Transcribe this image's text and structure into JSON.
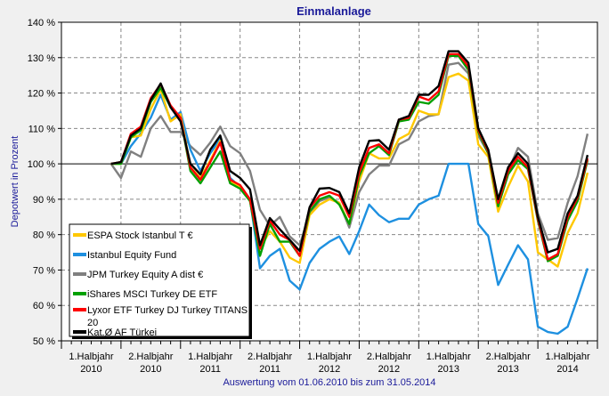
{
  "chart_data": {
    "type": "line",
    "title": "Einmalanlage",
    "ylabel": "Depotwert in Prozent",
    "xlabel": "Auswertung vom 01.06.2010 bis zum 31.05.2014",
    "ylim": [
      50,
      140
    ],
    "yticks": [
      50,
      60,
      70,
      80,
      90,
      100,
      110,
      120,
      130,
      140
    ],
    "ytick_suffix": " %",
    "reference_line": 100,
    "grid": true,
    "legend_position": "bottom-left",
    "x_start_month": "2010-06",
    "x_end_month": "2014-06",
    "xtick_labels": [
      [
        "1.Halbjahr",
        "2010"
      ],
      [
        "2.Halbjahr",
        "2010"
      ],
      [
        "1.Halbjahr",
        "2011"
      ],
      [
        "2.Halbjahr",
        "2011"
      ],
      [
        "1.Halbjahr",
        "2012"
      ],
      [
        "2.Halbjahr",
        "2012"
      ],
      [
        "1.Halbjahr",
        "2013"
      ],
      [
        "2.Halbjahr",
        "2013"
      ],
      [
        "1.Halbjahr",
        "2014"
      ]
    ],
    "series": [
      {
        "name": "JPM Turkey Equity A dist €",
        "color": "#808080",
        "values": [
          100,
          96,
          103.5,
          102,
          110,
          113.5,
          109,
          109,
          105,
          102.5,
          106,
          110.5,
          105,
          103,
          98,
          87,
          82.5,
          85,
          79.5,
          77,
          86,
          89.5,
          90.5,
          89,
          82,
          92,
          97,
          99.5,
          99.5,
          105.5,
          107,
          112,
          113.5,
          114,
          128,
          128.5,
          125.5,
          108,
          103,
          88,
          98,
          104.5,
          102,
          86,
          78.5,
          79,
          89,
          96.5,
          108.5
        ]
      },
      {
        "name": "Istanbul Equity Fund",
        "color": "#1e90e0",
        "values": [
          100,
          100,
          105,
          108.6,
          113,
          119.5,
          112.5,
          114.6,
          104,
          98,
          103,
          107,
          96,
          93.5,
          90,
          70.5,
          74,
          76,
          67,
          64.5,
          72,
          76,
          78,
          79.5,
          74.5,
          81,
          88.5,
          85.5,
          83.5,
          84.5,
          84.5,
          88.5,
          90,
          91,
          100,
          100,
          100,
          83,
          79.6,
          65.8,
          71.5,
          77,
          73,
          54,
          52.5,
          52,
          54,
          62,
          70.5
        ]
      },
      {
        "name": "ESPA Stock Istanbul T €",
        "color": "#ffc800",
        "values": [
          100,
          100,
          107.5,
          108,
          115.5,
          121,
          112,
          114,
          99,
          96,
          101,
          106.5,
          95,
          93.5,
          89.5,
          76,
          81,
          78,
          73.5,
          72,
          85.5,
          88.5,
          90,
          89,
          83,
          95,
          103,
          101.5,
          101.5,
          107,
          108.5,
          115,
          114,
          114,
          124.5,
          125.5,
          123.5,
          105.5,
          102,
          86.5,
          93.5,
          99.5,
          95,
          75,
          73,
          71,
          80.5,
          86,
          97.5
        ]
      },
      {
        "name": "iShares MSCI Turkey DE ETF",
        "color": "#00a000",
        "values": [
          100,
          100,
          107.5,
          109.5,
          117.5,
          121.5,
          116,
          113,
          98,
          94.5,
          99,
          103.5,
          94.5,
          93,
          89.5,
          74,
          83,
          78,
          78,
          74,
          86.5,
          90,
          91,
          88.5,
          83,
          96.5,
          103,
          105,
          102.5,
          112,
          112.5,
          117.5,
          117,
          119.5,
          130.5,
          130.5,
          126.5,
          109,
          103,
          88,
          97,
          101,
          98.5,
          84,
          72.5,
          74,
          84,
          89.5,
          101
        ]
      },
      {
        "name": "Lyxor ETF Turkey DJ Turkey TITANS 20",
        "color": "#ff0000",
        "values": [
          100,
          100.5,
          108.5,
          110.5,
          118.5,
          122.5,
          116.5,
          113,
          99,
          95.5,
          100.5,
          106,
          95.5,
          94,
          90,
          76,
          84,
          80,
          78.5,
          74,
          87.5,
          91,
          92,
          91,
          85,
          97.5,
          104.5,
          105.5,
          103,
          112.5,
          113,
          119,
          118,
          120.5,
          131,
          131,
          127.5,
          109.5,
          103.5,
          89,
          98,
          102,
          99,
          84.5,
          73,
          74.5,
          85,
          90.5,
          101.5
        ]
      },
      {
        "name": "Kat.Ø AF Türkei",
        "color": "#000000",
        "values": [
          100,
          100.5,
          108,
          110,
          118,
          122.7,
          116,
          112,
          100,
          97,
          104,
          108,
          98,
          96,
          92.8,
          77,
          84.7,
          81.5,
          78.5,
          75.4,
          87.7,
          93,
          93.2,
          92,
          86,
          99,
          106.5,
          106.7,
          104,
          112.5,
          113.5,
          119.5,
          119.5,
          122,
          131.8,
          131.8,
          128.5,
          110,
          104,
          90,
          99,
          103,
          100,
          85,
          75,
          76,
          86,
          91,
          102.5
        ]
      }
    ],
    "legend_order": [
      2,
      1,
      0,
      3,
      4,
      5
    ],
    "legend_labels": {
      "espa": "ESPA Stock Istanbul T €",
      "istanbul": "Istanbul Equity Fund",
      "jpm": "JPM Turkey Equity A dist €",
      "ishares": "iShares MSCI Turkey DE ETF",
      "lyxor_line1": "Lyxor ETF Turkey DJ Turkey TITANS",
      "lyxor_line2": "20",
      "kat": "Kat.Ø AF Türkei"
    }
  }
}
